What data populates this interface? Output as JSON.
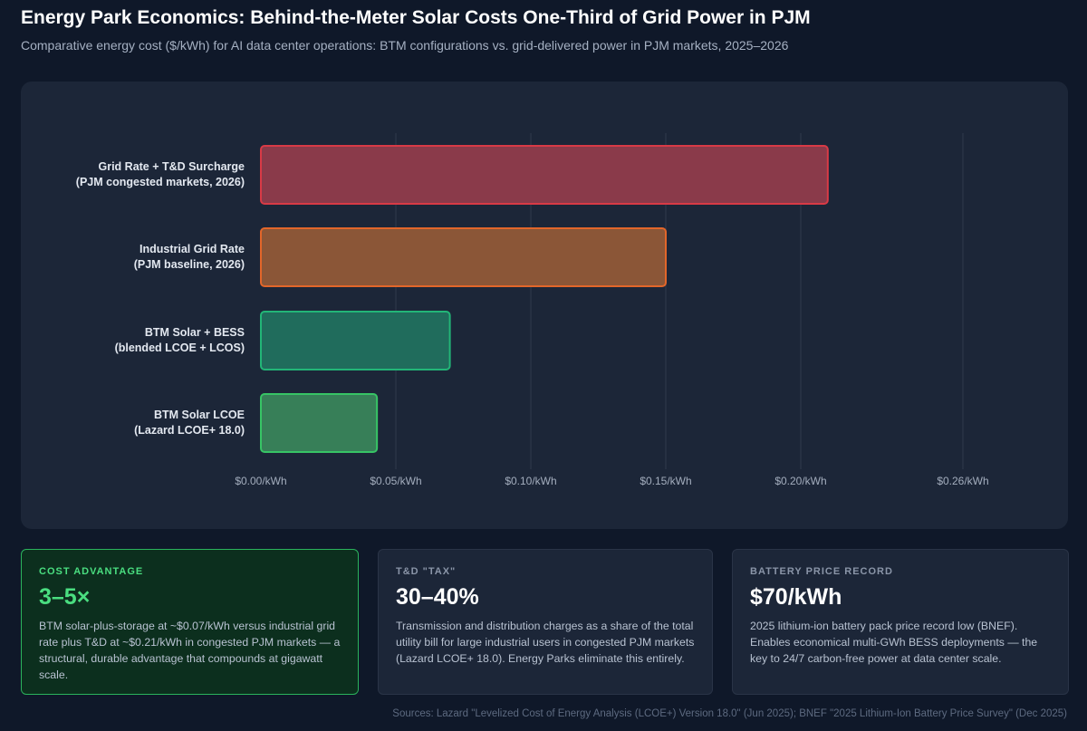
{
  "header": {
    "title": "Energy Park Economics: Behind-the-Meter Solar Costs One-Third of Grid Power in PJM",
    "subtitle": "Comparative energy cost ($/kWh) for AI data center operations: BTM configurations vs. grid-delivered power in PJM markets, 2025–2026"
  },
  "chart_data": {
    "type": "bar",
    "orientation": "horizontal",
    "categories": [
      [
        "Grid Rate + T&D Surcharge",
        "(PJM congested markets, 2026)"
      ],
      [
        "Industrial Grid Rate",
        "(PJM baseline, 2026)"
      ],
      [
        "BTM Solar + BESS",
        "(blended LCOE + LCOS)"
      ],
      [
        "BTM Solar LCOE",
        "(Lazard LCOE+ 18.0)"
      ]
    ],
    "values": [
      0.21,
      0.15,
      0.07,
      0.043
    ],
    "colors": [
      {
        "fill": "#8a3a4a",
        "stroke": "#d83a46"
      },
      {
        "fill": "#8b5637",
        "stroke": "#e2662a"
      },
      {
        "fill": "#206c5c",
        "stroke": "#22b577"
      },
      {
        "fill": "#377f58",
        "stroke": "#37c465"
      }
    ],
    "x_ticks": [
      {
        "value": 0.0,
        "label": "$0.00/kWh"
      },
      {
        "value": 0.05,
        "label": "$0.05/kWh"
      },
      {
        "value": 0.1,
        "label": "$0.10/kWh"
      },
      {
        "value": 0.15,
        "label": "$0.15/kWh"
      },
      {
        "value": 0.2,
        "label": "$0.20/kWh"
      },
      {
        "value": 0.26,
        "label": "$0.26/kWh"
      }
    ],
    "xlim": [
      0,
      0.26
    ],
    "grid": true,
    "legend": "none"
  },
  "cards": [
    {
      "label": "COST ADVANTAGE",
      "value": "3–5×",
      "desc": "BTM solar-plus-storage at ~$0.07/kWh versus industrial grid rate plus T&D at ~$0.21/kWh in congested PJM markets — a structural, durable advantage that compounds at gigawatt scale."
    },
    {
      "label": "T&D \"TAX\"",
      "value": "30–40%",
      "desc": "Transmission and distribution charges as a share of the total utility bill for large industrial users in congested PJM markets (Lazard LCOE+ 18.0). Energy Parks eliminate this entirely."
    },
    {
      "label": "BATTERY PRICE RECORD",
      "value": "$70/kWh",
      "desc": "2025 lithium-ion battery pack price record low (BNEF). Enables economical multi-GWh BESS deployments — the key to 24/7 carbon-free power at data center scale."
    }
  ],
  "footer": {
    "sources": "Sources: Lazard \"Levelized Cost of Energy Analysis (LCOE+) Version 18.0\" (Jun 2025); BNEF \"2025 Lithium-Ion Battery Price Survey\" (Dec 2025)"
  }
}
